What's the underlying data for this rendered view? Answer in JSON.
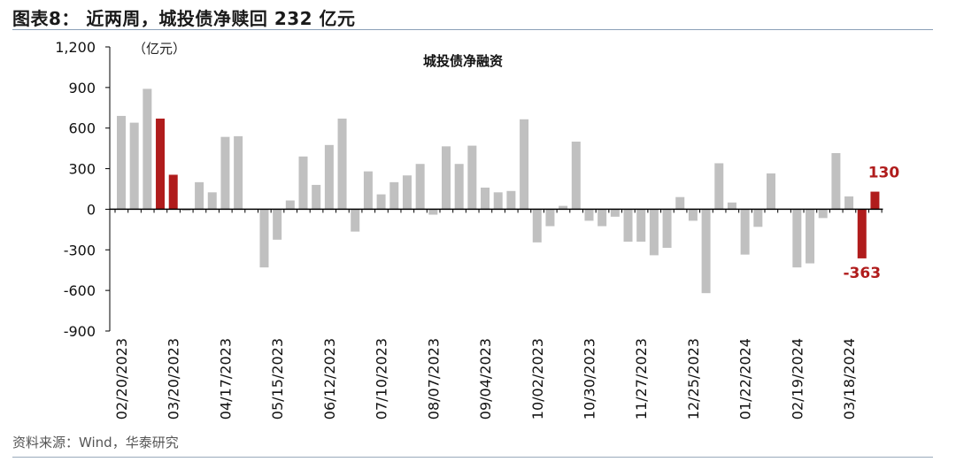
{
  "figure": {
    "title": "图表8：  近两周，城投债净赎回 232 亿元",
    "source": "资料来源：Wind，华泰研究"
  },
  "colors": {
    "bar": "#c0c0c0",
    "highlight": "#b01c1c",
    "axis": "#000000",
    "rule": "#8aa0b8"
  },
  "chart_data": {
    "type": "bar",
    "title": "城投债净融资",
    "unit": "（亿元）",
    "ylim": [
      -900,
      1200
    ],
    "yticks": [
      1200,
      900,
      600,
      300,
      0,
      -300,
      -600,
      -900
    ],
    "ytick_labels": [
      "1,200",
      "900",
      "600",
      "300",
      "0",
      "-300",
      "-600",
      "-900"
    ],
    "grid": false,
    "xtick_labels": [
      "02/20/2023",
      "03/20/2023",
      "04/17/2023",
      "05/15/2023",
      "06/12/2023",
      "07/10/2023",
      "08/07/2023",
      "09/04/2023",
      "10/02/2023",
      "10/30/2023",
      "11/27/2023",
      "12/25/2023",
      "01/22/2024",
      "02/19/2024",
      "03/18/2024"
    ],
    "values": [
      690,
      640,
      890,
      670,
      255,
      -10,
      200,
      125,
      535,
      540,
      0,
      -430,
      -225,
      65,
      390,
      180,
      475,
      670,
      -165,
      280,
      110,
      200,
      250,
      335,
      -40,
      465,
      335,
      470,
      160,
      125,
      135,
      665,
      -245,
      -125,
      25,
      500,
      -85,
      -125,
      -55,
      -240,
      -240,
      -340,
      -285,
      90,
      -85,
      -620,
      340,
      50,
      -335,
      -130,
      265,
      0,
      -430,
      -400,
      -65,
      415,
      95,
      -363,
      130
    ],
    "highlight": [
      {
        "index": 3,
        "value": 670
      },
      {
        "index": 4,
        "value": 255
      },
      {
        "index": 57,
        "value": -363
      },
      {
        "index": 58,
        "value": 130
      }
    ],
    "data_labels": [
      {
        "index": 57,
        "text": "-363"
      },
      {
        "index": 58,
        "text": "130"
      }
    ]
  }
}
